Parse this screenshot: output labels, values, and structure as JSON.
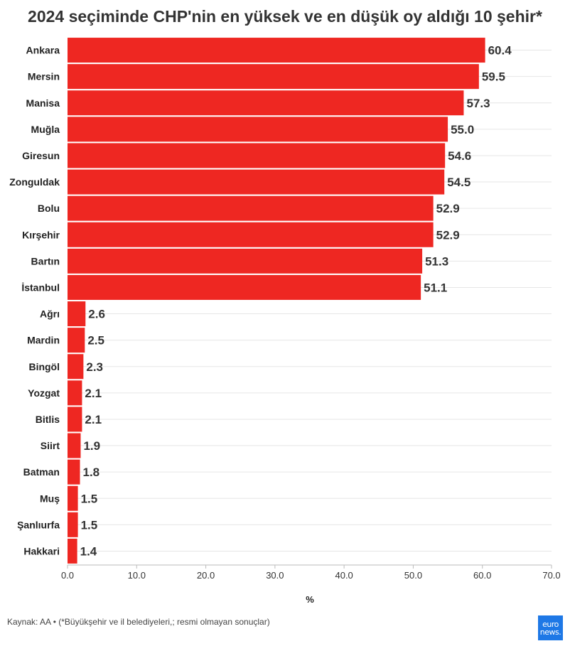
{
  "title": "2024 seçiminde CHP'nin en yüksek ve en düşük oy aldığı 10 şehir*",
  "source": "Kaynak: AA • (*Büyükşehir ve il belediyeleri,; resmi olmayan sonuçlar)",
  "logo": {
    "line1": "euro",
    "line2": "news."
  },
  "colors": {
    "bar": "#ee2722",
    "grid": "#e6e6e6",
    "axis": "#bbbbbb",
    "logo": "#1e78e6"
  },
  "chart_data": {
    "type": "bar",
    "orientation": "horizontal",
    "categories": [
      "Ankara",
      "Mersin",
      "Manisa",
      "Muğla",
      "Giresun",
      "Zonguldak",
      "Bolu",
      "Kırşehir",
      "Bartın",
      "İstanbul",
      "Ağrı",
      "Mardin",
      "Bingöl",
      "Yozgat",
      "Bitlis",
      "Siirt",
      "Batman",
      "Muş",
      "Şanlıurfa",
      "Hakkari"
    ],
    "values": [
      60.4,
      59.5,
      57.3,
      55.0,
      54.6,
      54.5,
      52.9,
      52.9,
      51.3,
      51.1,
      2.6,
      2.5,
      2.3,
      2.1,
      2.1,
      1.9,
      1.8,
      1.5,
      1.5,
      1.4
    ],
    "value_labels": [
      "60.4",
      "59.5",
      "57.3",
      "55.0",
      "54.6",
      "54.5",
      "52.9",
      "52.9",
      "51.3",
      "51.1",
      "2.6",
      "2.5",
      "2.3",
      "2.1",
      "2.1",
      "1.9",
      "1.8",
      "1.5",
      "1.5",
      "1.4"
    ],
    "xlim": [
      0,
      70
    ],
    "xticks": [
      "0.0",
      "10.0",
      "20.0",
      "30.0",
      "40.0",
      "50.0",
      "60.0",
      "70.0"
    ],
    "xlabel": "%",
    "grid": true
  }
}
